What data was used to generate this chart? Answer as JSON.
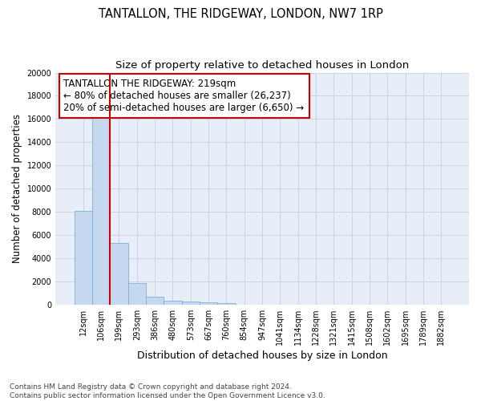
{
  "title": "TANTALLON, THE RIDGEWAY, LONDON, NW7 1RP",
  "subtitle": "Size of property relative to detached houses in London",
  "xlabel": "Distribution of detached houses by size in London",
  "ylabel": "Number of detached properties",
  "categories": [
    "12sqm",
    "106sqm",
    "199sqm",
    "293sqm",
    "386sqm",
    "480sqm",
    "573sqm",
    "667sqm",
    "760sqm",
    "854sqm",
    "947sqm",
    "1041sqm",
    "1134sqm",
    "1228sqm",
    "1321sqm",
    "1415sqm",
    "1508sqm",
    "1602sqm",
    "1695sqm",
    "1789sqm",
    "1882sqm"
  ],
  "values": [
    8100,
    16500,
    5300,
    1850,
    700,
    320,
    270,
    200,
    150,
    0,
    0,
    0,
    0,
    0,
    0,
    0,
    0,
    0,
    0,
    0,
    0
  ],
  "bar_color": "#c5d8f0",
  "bar_edge_color": "#7bafd4",
  "vline_color": "#cc0000",
  "vline_pos": 2,
  "annotation_line1": "TANTALLON THE RIDGEWAY: 219sqm",
  "annotation_line2": "← 80% of detached houses are smaller (26,237)",
  "annotation_line3": "20% of semi-detached houses are larger (6,650) →",
  "annotation_box_color": "#cc0000",
  "ylim": [
    0,
    20000
  ],
  "yticks": [
    0,
    2000,
    4000,
    6000,
    8000,
    10000,
    12000,
    14000,
    16000,
    18000,
    20000
  ],
  "grid_color": "#c8d4e8",
  "bg_color": "#e8eef8",
  "footnote": "Contains HM Land Registry data © Crown copyright and database right 2024.\nContains public sector information licensed under the Open Government Licence v3.0.",
  "title_fontsize": 10.5,
  "subtitle_fontsize": 9.5,
  "xlabel_fontsize": 9,
  "ylabel_fontsize": 8.5,
  "tick_fontsize": 7,
  "annotation_fontsize": 8.5,
  "footnote_fontsize": 6.5
}
